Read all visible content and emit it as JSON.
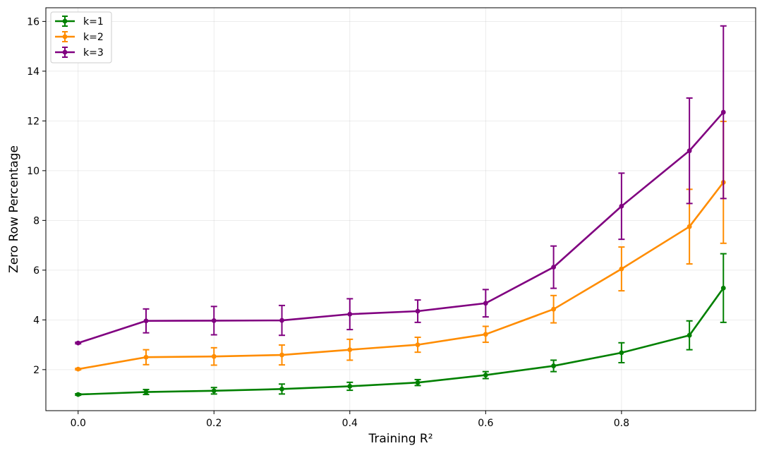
{
  "chart_data": {
    "type": "line",
    "title": "",
    "xlabel": "Training R²",
    "ylabel": "Zero Row Percentage",
    "xlim": [
      -0.0475,
      0.9975
    ],
    "ylim": [
      0.35,
      16.55
    ],
    "grid": true,
    "legend_position": "top-left",
    "xticks": [
      0.0,
      0.2,
      0.4,
      0.6,
      0.8
    ],
    "xtick_labels": [
      "0.0",
      "0.2",
      "0.4",
      "0.6",
      "0.8"
    ],
    "yticks": [
      2,
      4,
      6,
      8,
      10,
      12,
      14,
      16
    ],
    "ytick_labels": [
      "2",
      "4",
      "6",
      "8",
      "10",
      "12",
      "14",
      "16"
    ],
    "x": [
      0.0,
      0.1,
      0.2,
      0.3,
      0.4,
      0.5,
      0.6,
      0.7,
      0.8,
      0.9,
      0.95
    ],
    "series": [
      {
        "name": "k=1",
        "color": "#008000",
        "values": [
          1.0,
          1.1,
          1.15,
          1.22,
          1.33,
          1.48,
          1.78,
          2.15,
          2.68,
          3.38,
          5.28
        ],
        "errors": [
          0.03,
          0.1,
          0.13,
          0.2,
          0.16,
          0.12,
          0.14,
          0.23,
          0.4,
          0.58,
          1.38
        ]
      },
      {
        "name": "k=2",
        "color": "#ff8c00",
        "values": [
          2.02,
          2.5,
          2.53,
          2.59,
          2.8,
          3.0,
          3.42,
          4.43,
          6.05,
          7.75,
          9.53
        ],
        "errors": [
          0.03,
          0.3,
          0.35,
          0.4,
          0.42,
          0.3,
          0.32,
          0.55,
          0.88,
          1.5,
          2.45
        ]
      },
      {
        "name": "k=3",
        "color": "#800080",
        "values": [
          3.07,
          3.96,
          3.97,
          3.98,
          4.23,
          4.35,
          4.67,
          6.12,
          8.57,
          10.8,
          12.35
        ],
        "errors": [
          0.03,
          0.48,
          0.57,
          0.6,
          0.62,
          0.45,
          0.55,
          0.85,
          1.33,
          2.12,
          3.47
        ]
      }
    ]
  }
}
